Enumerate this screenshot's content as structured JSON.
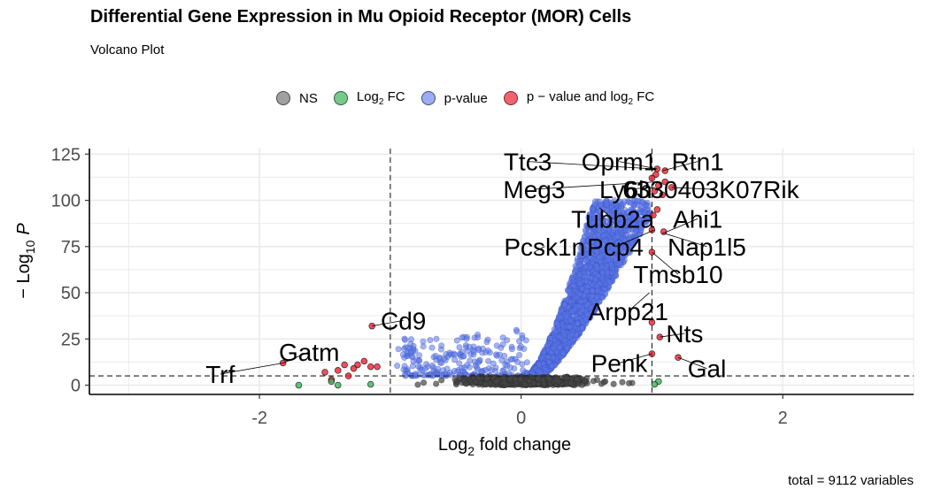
{
  "chart_data": {
    "type": "scatter",
    "title": "Differential Gene Expression in Mu Opioid Receptor (MOR) Cells",
    "subtitle": "Volcano Plot",
    "caption": "total = 9112 variables",
    "xlabel_main": "Log",
    "xlabel_sub": "2",
    "xlabel_rest": " fold change",
    "ylabel_pre": "− Log",
    "ylabel_sub": "10",
    "ylabel_p": "P",
    "xlim": [
      -3.3,
      3.0
    ],
    "ylim": [
      -5,
      128
    ],
    "x_ticks": [
      {
        "value": -2,
        "label": "-2"
      },
      {
        "value": 0,
        "label": "0"
      },
      {
        "value": 2,
        "label": "2"
      }
    ],
    "y_ticks": [
      {
        "value": 0,
        "label": "0"
      },
      {
        "value": 25,
        "label": "25"
      },
      {
        "value": 50,
        "label": "50"
      },
      {
        "value": 75,
        "label": "75"
      },
      {
        "value": 100,
        "label": "100"
      },
      {
        "value": 125,
        "label": "125"
      }
    ],
    "fc_cutoffs": [
      -1,
      1
    ],
    "p_cutoff": 5,
    "grid": true,
    "legend_position": "top",
    "colors": {
      "ns": "#808080",
      "fc": "#3cb35a",
      "p": "#5a77e8",
      "both": "#f0202f"
    },
    "legend": [
      {
        "key": "ns",
        "label": "NS"
      },
      {
        "key": "fc",
        "label": "Log",
        "sub": "2",
        "rest": " FC"
      },
      {
        "key": "p",
        "label": "p-value"
      },
      {
        "key": "both",
        "label": "p − value and log",
        "sub": "2",
        "rest": " FC"
      }
    ],
    "series": [
      {
        "key": "both",
        "points": [
          [
            1.04,
            117
          ],
          [
            1.1,
            116
          ],
          [
            1.03,
            114
          ],
          [
            1.0,
            112
          ],
          [
            1.05,
            108
          ],
          [
            1.1,
            110
          ],
          [
            1.15,
            107
          ],
          [
            1.02,
            105
          ],
          [
            1.08,
            103
          ],
          [
            1.01,
            92
          ],
          [
            1.04,
            95
          ],
          [
            1.0,
            84
          ],
          [
            1.09,
            83
          ],
          [
            1.0,
            72
          ],
          [
            1.0,
            34
          ],
          [
            1.06,
            26
          ],
          [
            1.0,
            17
          ],
          [
            1.2,
            15
          ],
          [
            -1.14,
            32
          ],
          [
            -1.82,
            12
          ],
          [
            -1.5,
            7
          ],
          [
            -1.4,
            8
          ],
          [
            -1.45,
            3
          ],
          [
            -1.35,
            11
          ],
          [
            -1.25,
            11
          ],
          [
            -1.28,
            9
          ],
          [
            -1.2,
            13
          ],
          [
            -1.15,
            10
          ],
          [
            -1.1,
            10
          ],
          [
            -1.32,
            5
          ]
        ]
      },
      {
        "key": "fc",
        "points": [
          [
            -1.7,
            0
          ],
          [
            -1.45,
            2
          ],
          [
            -1.15,
            0.5
          ],
          [
            -1.4,
            0
          ],
          [
            1.05,
            2
          ],
          [
            1.02,
            0.5
          ]
        ]
      }
    ],
    "gene_labels": [
      {
        "text": "Ttc3",
        "x": 0.05,
        "y": 121
      },
      {
        "text": "Oprm1",
        "x": 0.75,
        "y": 121
      },
      {
        "text": "Rtn1",
        "x": 1.35,
        "y": 121
      },
      {
        "text": "Meg3",
        "x": 0.1,
        "y": 106
      },
      {
        "text": "Ly6h",
        "x": 0.8,
        "y": 106
      },
      {
        "text": "6330403K07Rik",
        "x": 1.45,
        "y": 106
      },
      {
        "text": "Tubb2a",
        "x": 0.7,
        "y": 90
      },
      {
        "text": "Ahi1",
        "x": 1.35,
        "y": 90
      },
      {
        "text": "Pcsk1n",
        "x": 0.18,
        "y": 75
      },
      {
        "text": "Pcp4",
        "x": 0.72,
        "y": 75
      },
      {
        "text": "Nap1l5",
        "x": 1.42,
        "y": 75
      },
      {
        "text": "Tmsb10",
        "x": 1.2,
        "y": 60
      },
      {
        "text": "Arpp21",
        "x": 0.82,
        "y": 40
      },
      {
        "text": "Cd9",
        "x": -0.9,
        "y": 35
      },
      {
        "text": "Nts",
        "x": 1.25,
        "y": 28
      },
      {
        "text": "Gatm",
        "x": -1.62,
        "y": 18
      },
      {
        "text": "Penk",
        "x": 0.75,
        "y": 12
      },
      {
        "text": "Trf",
        "x": -2.3,
        "y": 6
      },
      {
        "text": "Gal",
        "x": 1.42,
        "y": 9
      }
    ]
  }
}
